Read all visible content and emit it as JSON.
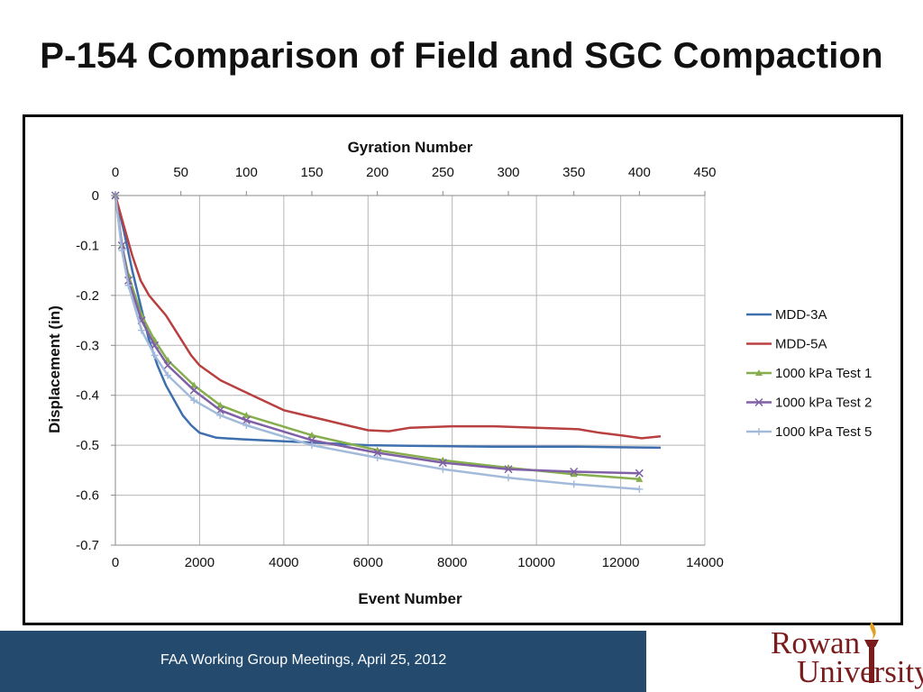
{
  "slide": {
    "title": "P-154 Comparison of Field and SGC Compaction",
    "footer_text": "FAA Working Group Meetings, April 25, 2012",
    "footer_color": "#244a6e",
    "logo": {
      "line1": "Rowan",
      "line2": "University",
      "color": "#7a1c1c",
      "icon": "torch-icon"
    }
  },
  "chart_data": {
    "type": "line",
    "title": "",
    "xlabel": "Event Number",
    "x2label": "Gyration Number",
    "ylabel": "Displacement (in)",
    "xlim": [
      0,
      14000
    ],
    "x2lim": [
      0,
      450
    ],
    "ylim": [
      -0.7,
      0
    ],
    "xticks": [
      "0",
      "2000",
      "4000",
      "6000",
      "8000",
      "10000",
      "12000",
      "14000"
    ],
    "x2ticks": [
      "0",
      "50",
      "100",
      "150",
      "200",
      "250",
      "300",
      "350",
      "400",
      "450"
    ],
    "yticks": [
      "0",
      "-0.1",
      "-0.2",
      "-0.3",
      "-0.4",
      "-0.5",
      "-0.6",
      "-0.7"
    ],
    "grid": true,
    "legend_position": "right",
    "series": [
      {
        "name": "MDD-3A",
        "color": "#3d6fae",
        "axis": "event",
        "marker": "none",
        "x": [
          0,
          200,
          400,
          600,
          800,
          1000,
          1200,
          1400,
          1600,
          1800,
          2000,
          2400,
          3000,
          4000,
          5000,
          6000,
          7000,
          8000,
          9000,
          10000,
          11000,
          12000,
          12950
        ],
        "y": [
          0,
          -0.07,
          -0.15,
          -0.22,
          -0.29,
          -0.34,
          -0.38,
          -0.41,
          -0.44,
          -0.46,
          -0.475,
          -0.485,
          -0.488,
          -0.492,
          -0.496,
          -0.5,
          -0.501,
          -0.502,
          -0.503,
          -0.503,
          -0.503,
          -0.504,
          -0.505
        ]
      },
      {
        "name": "MDD-5A",
        "color": "#b84040",
        "axis": "event",
        "marker": "none",
        "x": [
          0,
          200,
          400,
          600,
          800,
          1000,
          1200,
          1500,
          1800,
          2000,
          2500,
          3000,
          3500,
          4000,
          4500,
          5000,
          5500,
          6000,
          6500,
          7000,
          8000,
          9000,
          10000,
          11000,
          11500,
          12000,
          12500,
          12950
        ],
        "y": [
          0,
          -0.06,
          -0.12,
          -0.17,
          -0.2,
          -0.22,
          -0.24,
          -0.28,
          -0.32,
          -0.34,
          -0.37,
          -0.39,
          -0.41,
          -0.43,
          -0.44,
          -0.45,
          -0.46,
          -0.47,
          -0.472,
          -0.465,
          -0.462,
          -0.462,
          -0.465,
          -0.468,
          -0.475,
          -0.48,
          -0.486,
          -0.482
        ]
      },
      {
        "name": "1000 kPa Test 1",
        "color": "#86ae4c",
        "axis": "gyration",
        "marker": "triangle",
        "x": [
          0,
          5,
          10,
          20,
          30,
          40,
          60,
          80,
          100,
          150,
          200,
          250,
          300,
          350,
          400
        ],
        "y": [
          0,
          -0.1,
          -0.16,
          -0.24,
          -0.29,
          -0.33,
          -0.38,
          -0.42,
          -0.44,
          -0.48,
          -0.51,
          -0.53,
          -0.545,
          -0.558,
          -0.568
        ]
      },
      {
        "name": "1000 kPa Test 2",
        "color": "#7f5fa6",
        "axis": "gyration",
        "marker": "x",
        "x": [
          0,
          5,
          10,
          20,
          30,
          40,
          60,
          80,
          100,
          150,
          200,
          250,
          300,
          350,
          400
        ],
        "y": [
          0,
          -0.1,
          -0.17,
          -0.25,
          -0.3,
          -0.34,
          -0.39,
          -0.43,
          -0.45,
          -0.49,
          -0.515,
          -0.535,
          -0.548,
          -0.553,
          -0.556
        ]
      },
      {
        "name": "1000 kPa Test 5",
        "color": "#a3bbdb",
        "axis": "gyration",
        "marker": "plus",
        "x": [
          0,
          5,
          10,
          20,
          30,
          40,
          60,
          80,
          100,
          150,
          200,
          250,
          300,
          350,
          400
        ],
        "y": [
          0,
          -0.11,
          -0.18,
          -0.27,
          -0.32,
          -0.36,
          -0.41,
          -0.44,
          -0.46,
          -0.5,
          -0.525,
          -0.548,
          -0.565,
          -0.578,
          -0.588
        ]
      }
    ]
  }
}
